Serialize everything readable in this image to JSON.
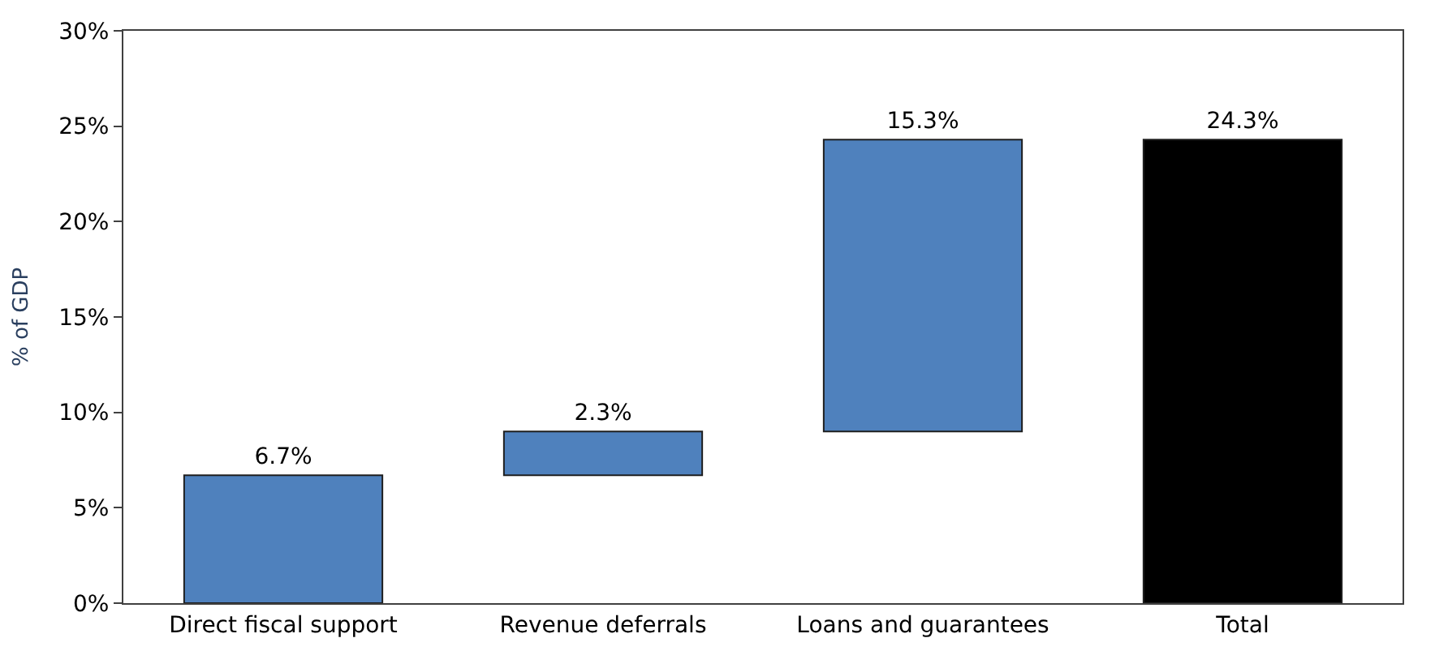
{
  "chart_data": {
    "type": "bar",
    "ylabel": "% of GDP",
    "categories": [
      "Direct fiscal support",
      "Revenue deferrals",
      "Loans and guarantees",
      "Total"
    ],
    "values": [
      6.7,
      2.3,
      15.3,
      24.3
    ],
    "base": [
      0,
      6.7,
      9.0,
      0
    ],
    "colors": [
      "#4f81bd",
      "#4f81bd",
      "#4f81bd",
      "#000000"
    ],
    "value_labels": [
      "6.7%",
      "2.3%",
      "15.3%",
      "24.3%"
    ],
    "ylim": [
      0,
      30
    ],
    "yticks": [
      {
        "value": 0,
        "label": "0%"
      },
      {
        "value": 5,
        "label": "5%"
      },
      {
        "value": 10,
        "label": "10%"
      },
      {
        "value": 15,
        "label": "15%"
      },
      {
        "value": 20,
        "label": "20%"
      },
      {
        "value": 25,
        "label": "25%"
      },
      {
        "value": 30,
        "label": "30%"
      }
    ],
    "relative": false
  }
}
